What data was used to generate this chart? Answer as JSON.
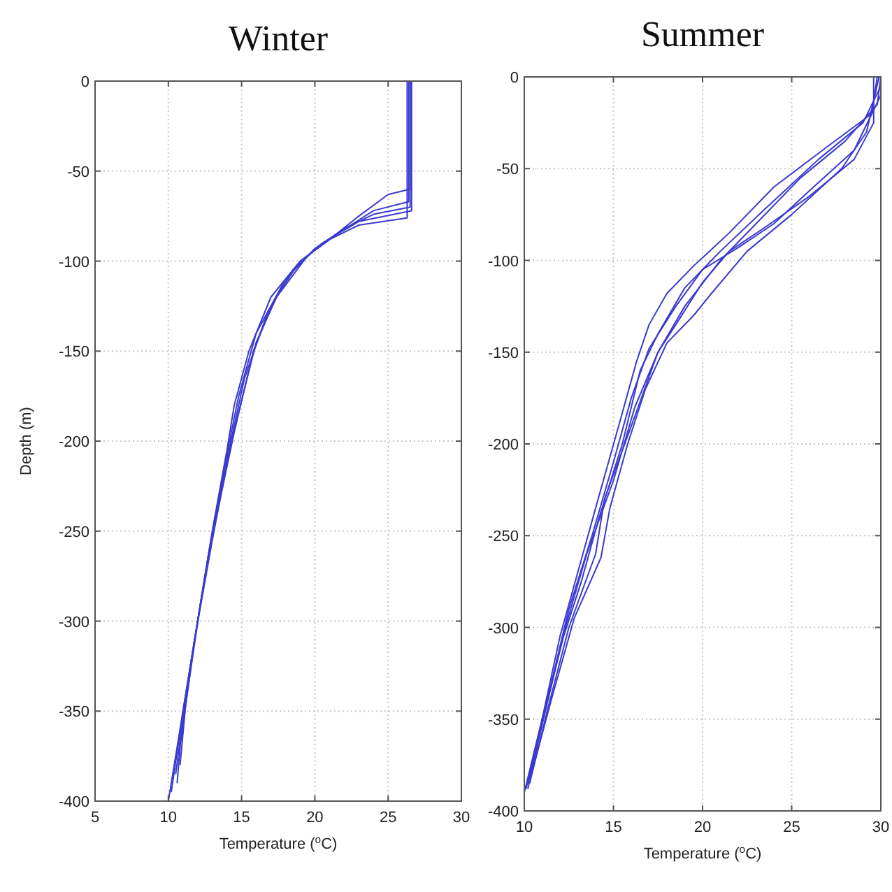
{
  "chart_data": [
    {
      "type": "line",
      "title": "Winter",
      "xlabel": "Temperature ($^{o}$C)",
      "ylabel": "Depth (m)",
      "xlim": [
        5,
        30
      ],
      "ylim": [
        -400,
        0
      ],
      "xticks": [
        5,
        10,
        15,
        20,
        25,
        30
      ],
      "yticks": [
        -400,
        -350,
        -300,
        -250,
        -200,
        -150,
        -100,
        -50,
        0
      ],
      "grid": true,
      "series": [
        {
          "color": "#3a3ad0",
          "x": [
            26.5,
            26.5,
            25,
            23,
            21,
            19,
            17,
            15.5,
            14.5,
            14,
            13,
            12,
            11,
            10
          ],
          "values": [
            0,
            -60,
            -63,
            -75,
            -88,
            -100,
            -120,
            -150,
            -180,
            -205,
            -250,
            -300,
            -350,
            -400
          ]
        },
        {
          "color": "#3a3ad0",
          "x": [
            26.5,
            26.5,
            24,
            22,
            20,
            18,
            16,
            14.8,
            13.8,
            12.8,
            12,
            11,
            10.2
          ],
          "values": [
            0,
            -70,
            -74,
            -82,
            -93,
            -110,
            -140,
            -175,
            -215,
            -260,
            -300,
            -350,
            -395
          ]
        },
        {
          "color": "#3a3ad0",
          "x": [
            26.3,
            26.3,
            23,
            21,
            19,
            17.5,
            16,
            14.3,
            13,
            11.8,
            10.8,
            10.6
          ],
          "values": [
            0,
            -76,
            -80,
            -88,
            -100,
            -118,
            -145,
            -200,
            -255,
            -310,
            -370,
            -390
          ]
        },
        {
          "color": "#3a3ad0",
          "x": [
            26.6,
            26.6,
            23,
            20.5,
            18.5,
            16.8,
            15.2,
            14,
            12.7,
            11.6,
            10.9,
            10.5
          ],
          "values": [
            0,
            -72,
            -78,
            -90,
            -105,
            -128,
            -165,
            -210,
            -265,
            -320,
            -360,
            -385
          ]
        },
        {
          "color": "#3a3ad0",
          "x": [
            26.4,
            26.4,
            24,
            21.5,
            19.5,
            17.2,
            15.8,
            14.5,
            13.2,
            12.2,
            11.2,
            10.8
          ],
          "values": [
            0,
            -67,
            -72,
            -85,
            -97,
            -122,
            -150,
            -195,
            -245,
            -290,
            -345,
            -380
          ]
        }
      ]
    },
    {
      "type": "line",
      "title": "Summer",
      "xlabel": "Temperature ($^{o}$C)",
      "xlim": [
        10,
        30
      ],
      "ylim": [
        -400,
        0
      ],
      "xticks": [
        10,
        15,
        20,
        25,
        30
      ],
      "yticks": [
        -400,
        -350,
        -300,
        -250,
        -200,
        -150,
        -100,
        -50,
        0
      ],
      "grid": true,
      "series": [
        {
          "color": "#3a3ad0",
          "x": [
            29.8,
            29.5,
            27,
            24,
            21.5,
            19.5,
            18,
            17,
            16.3,
            15.3,
            14,
            13,
            12,
            11,
            10
          ],
          "values": [
            0,
            -20,
            -38,
            -60,
            -85,
            -103,
            -118,
            -135,
            -155,
            -190,
            -235,
            -270,
            -305,
            -350,
            -390
          ]
        },
        {
          "color": "#3a3ad0",
          "x": [
            30,
            29.8,
            28,
            25.5,
            23,
            21,
            19,
            17.5,
            16.2,
            15,
            13.5,
            12.3,
            11.2,
            10.2
          ],
          "values": [
            0,
            -15,
            -35,
            -55,
            -80,
            -100,
            -125,
            -150,
            -180,
            -220,
            -260,
            -300,
            -345,
            -385
          ]
        },
        {
          "color": "#3a3ad0",
          "x": [
            29.6,
            29.6,
            28.5,
            26,
            23.5,
            21.5,
            20,
            18.5,
            17.5,
            16.2,
            14.5,
            14,
            12.5,
            11.3,
            10.3
          ],
          "values": [
            0,
            -25,
            -45,
            -65,
            -82,
            -95,
            -112,
            -135,
            -150,
            -185,
            -230,
            -260,
            -300,
            -345,
            -385
          ]
        },
        {
          "color": "#3a3ad0",
          "x": [
            30,
            29,
            26.5,
            23.5,
            21,
            19,
            17.5,
            16.5,
            15.5,
            14.2,
            13.2,
            12.2,
            11,
            10.1
          ],
          "values": [
            -5,
            -25,
            -45,
            -72,
            -95,
            -115,
            -140,
            -160,
            -200,
            -240,
            -275,
            -305,
            -350,
            -388
          ]
        },
        {
          "color": "#3a3ad0",
          "x": [
            29.9,
            29.2,
            27.8,
            25,
            22.5,
            20.5,
            19.5,
            18,
            16.8,
            15.8,
            14.8,
            14.3,
            12.8,
            11.5,
            10.4
          ],
          "values": [
            0,
            -30,
            -50,
            -75,
            -95,
            -118,
            -130,
            -145,
            -170,
            -200,
            -235,
            -262,
            -295,
            -340,
            -380
          ]
        },
        {
          "color": "#3a3ad0",
          "x": [
            30,
            28.5,
            26,
            24,
            22,
            20,
            18.5,
            17,
            16,
            15,
            13.8,
            12.5,
            11.4,
            10.2
          ],
          "values": [
            -10,
            -40,
            -62,
            -80,
            -93,
            -105,
            -125,
            -148,
            -175,
            -210,
            -250,
            -290,
            -335,
            -388
          ]
        }
      ]
    }
  ]
}
